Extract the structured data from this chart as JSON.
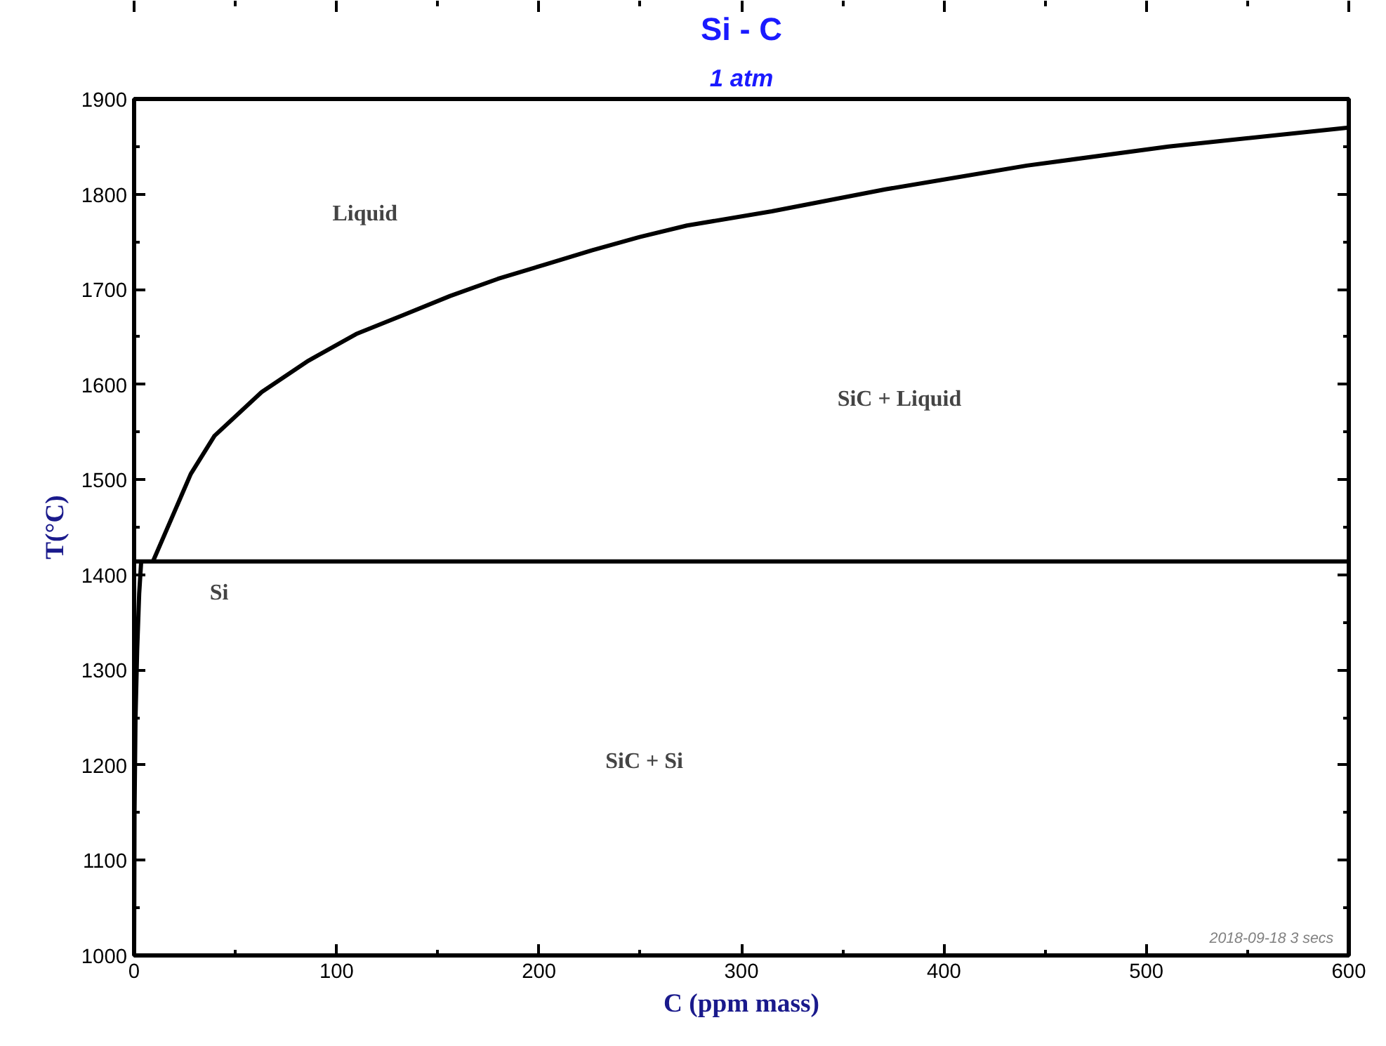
{
  "chart_data": {
    "type": "line",
    "title": "Si - C",
    "subtitle": "1 atm",
    "xlabel": "C (ppm mass)",
    "ylabel": "T(°C)",
    "xlim": [
      0,
      600
    ],
    "xticks": [
      0,
      100,
      200,
      300,
      400,
      500,
      600
    ],
    "ylim": [
      1000,
      1900
    ],
    "yticks": [
      1000,
      1100,
      1200,
      1300,
      1400,
      1500,
      1600,
      1700,
      1800,
      1900
    ],
    "grid": false,
    "marker": "none",
    "line_style": "solid",
    "series": [
      {
        "color": "#000000",
        "x": [
          9.3,
          28,
          39.7,
          63,
          86.1,
          109.7,
          133,
          156.1,
          179.7,
          203,
          226.1,
          249.7,
          273.1,
          315,
          371,
          441,
          511,
          600
        ],
        "values": [
          1414,
          1506,
          1546,
          1592,
          1625,
          1653,
          1673,
          1693,
          1711,
          1726,
          1741,
          1755,
          1767,
          1782,
          1805,
          1830,
          1850,
          1870
        ]
      },
      {
        "color": "#000000",
        "x": [
          0,
          0.2,
          0.7,
          1.5,
          2.5,
          3.5
        ],
        "values": [
          1000,
          1150,
          1250,
          1320,
          1380,
          1414
        ]
      },
      {
        "color": "#000000",
        "x": [
          0,
          600
        ],
        "values": [
          1414,
          1414
        ]
      }
    ],
    "annotations": [
      "Liquid",
      "SiC + Liquid",
      "Si",
      "SiC + Si",
      "2018-09-18  3 secs"
    ]
  }
}
